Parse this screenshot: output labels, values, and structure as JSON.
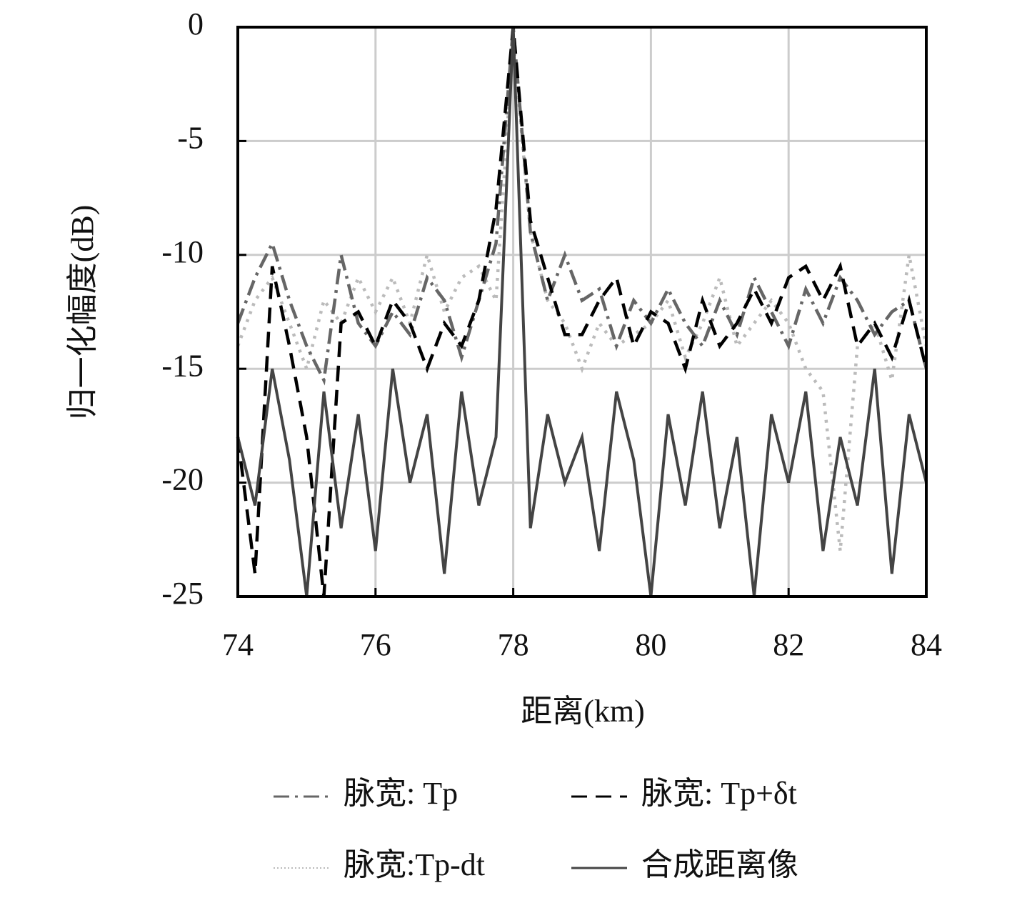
{
  "chart_data": {
    "type": "line",
    "xlabel": "距离(km)",
    "ylabel": "归一化幅度(dB)",
    "x": [
      74,
      74.25,
      74.5,
      74.75,
      75,
      75.25,
      75.5,
      75.75,
      76,
      76.25,
      76.5,
      76.75,
      77,
      77.25,
      77.5,
      77.75,
      78,
      78.25,
      78.5,
      78.75,
      79,
      79.25,
      79.5,
      79.75,
      80,
      80.25,
      80.5,
      80.75,
      81,
      81.25,
      81.5,
      81.75,
      82,
      82.25,
      82.5,
      82.75,
      83,
      83.25,
      83.5,
      83.75,
      84
    ],
    "xlim": [
      74,
      84
    ],
    "xticks": [
      74,
      76,
      78,
      80,
      82,
      84
    ],
    "ylim": [
      -25,
      0
    ],
    "yticks": [
      0,
      -5,
      -10,
      -15,
      -20,
      -25
    ],
    "grid": true,
    "series": [
      {
        "name": "脉宽: Tp",
        "color": "#666666",
        "dash": "dashdot",
        "values": [
          -13,
          -11,
          -9.5,
          -12,
          -14,
          -15.5,
          -10,
          -13,
          -14,
          -12.5,
          -13.5,
          -11,
          -12,
          -14.5,
          -12,
          -9.5,
          0,
          -9,
          -12,
          -10,
          -12,
          -11.5,
          -14,
          -12,
          -13,
          -11.5,
          -13,
          -14,
          -12,
          -13.5,
          -11,
          -12.5,
          -14,
          -11.5,
          -13,
          -11,
          -12,
          -13.5,
          -12.5,
          -12,
          -15
        ]
      },
      {
        "name": "脉宽: Tp+δt",
        "color": "#000000",
        "dash": "dashed",
        "values": [
          -18,
          -24,
          -10.5,
          -14,
          -18,
          -25,
          -13,
          -12.5,
          -14,
          -12,
          -13,
          -15,
          -13,
          -14,
          -12,
          -8,
          0,
          -8.5,
          -11,
          -13.5,
          -13.5,
          -12,
          -11,
          -14,
          -12.5,
          -13,
          -15,
          -12,
          -14,
          -13,
          -11.5,
          -13,
          -11,
          -10.5,
          -12,
          -10.5,
          -14,
          -13,
          -14.5,
          -12,
          -15
        ]
      },
      {
        "name": "脉宽:Tp-dt",
        "color": "#bbbbbb",
        "dash": "dotted",
        "values": [
          -14,
          -12,
          -11,
          -13,
          -15,
          -12,
          -13,
          -11,
          -12.5,
          -11,
          -13,
          -10,
          -12.5,
          -11,
          -10.5,
          -12,
          -0.5,
          -9,
          -12,
          -13,
          -15,
          -13,
          -14,
          -13.5,
          -13,
          -12,
          -14.5,
          -13,
          -11,
          -14,
          -13,
          -12,
          -13,
          -15,
          -16,
          -23,
          -14,
          -13,
          -15.5,
          -10,
          -14
        ]
      },
      {
        "name": "合成距离像",
        "color": "#444444",
        "dash": "solid",
        "values": [
          -18,
          -21,
          -15,
          -19,
          -25,
          -16,
          -22,
          -17,
          -23,
          -15,
          -20,
          -17,
          -24,
          -16,
          -21,
          -18,
          0,
          -22,
          -17,
          -20,
          -18,
          -23,
          -16,
          -19,
          -25,
          -17,
          -21,
          -16,
          -22,
          -18,
          -25,
          -17,
          -20,
          -16,
          -23,
          -18,
          -21,
          -15,
          -24,
          -17,
          -20
        ]
      }
    ]
  }
}
